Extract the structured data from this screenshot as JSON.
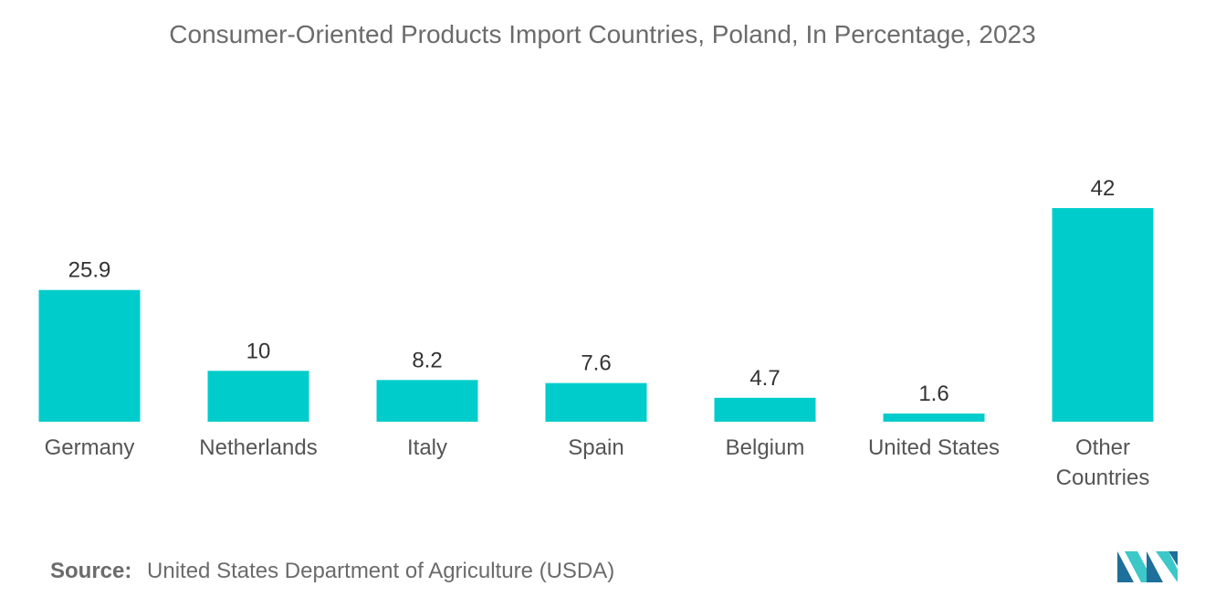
{
  "chart_data": {
    "type": "bar",
    "title": "Consumer-Oriented Products Import Countries, Poland, In Percentage, 2023",
    "xlabel": "",
    "ylabel": "",
    "categories": [
      "Germany",
      "Netherlands",
      "Italy",
      "Spain",
      "Belgium",
      "United States",
      "Other Countries"
    ],
    "category_lines": [
      [
        "Germany"
      ],
      [
        "Netherlands"
      ],
      [
        "Italy"
      ],
      [
        "Spain"
      ],
      [
        "Belgium"
      ],
      [
        "United States"
      ],
      [
        "Other",
        "Countries"
      ]
    ],
    "values": [
      25.9,
      10,
      8.2,
      7.6,
      4.7,
      1.6,
      42
    ],
    "value_labels": [
      "25.9",
      "10",
      "8.2",
      "7.6",
      "4.7",
      "1.6",
      "42"
    ],
    "ylim": [
      0,
      42
    ],
    "grid": false,
    "legend": "none",
    "bar_color": "#00cccc"
  },
  "source": {
    "label": "Source:",
    "text": "United States Department of Agriculture (USDA)"
  },
  "colors": {
    "title": "#6b6b6b",
    "text": "#6b6b6b",
    "logo_dark": "#1e6f9a",
    "logo_light": "#3cc8c8"
  }
}
